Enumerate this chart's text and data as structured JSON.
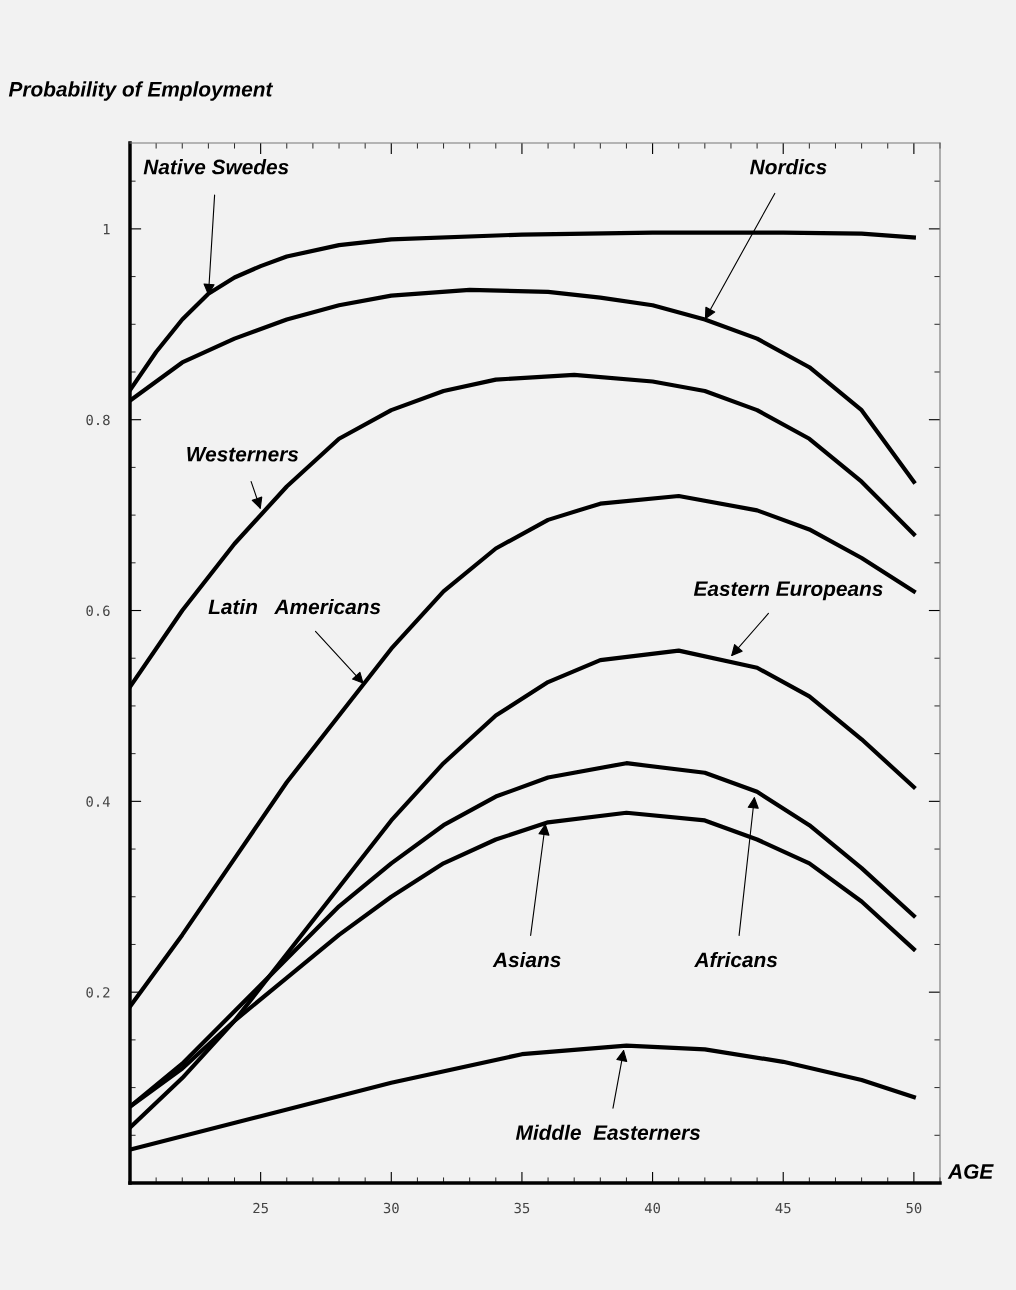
{
  "chart_data": {
    "type": "line",
    "ylabel": "Probability of Employment",
    "xlabel": "AGE",
    "xlim": [
      20,
      51
    ],
    "ylim": [
      0,
      1.09
    ],
    "xticks": [
      25,
      30,
      35,
      40,
      45,
      50
    ],
    "yticks": [
      0.2,
      0.4,
      0.6,
      0.8,
      1
    ],
    "grid": false,
    "legend": false,
    "marker": "none",
    "line_style": "solid",
    "series": [
      {
        "color": "#000000",
        "x": [
          20,
          21,
          22,
          23,
          24,
          25,
          26,
          28,
          30,
          35,
          40,
          45,
          48,
          50
        ],
        "values": [
          0.831,
          0.871,
          0.905,
          0.932,
          0.949,
          0.961,
          0.971,
          0.983,
          0.989,
          0.994,
          0.996,
          0.996,
          0.995,
          0.991
        ]
      },
      {
        "color": "#000000",
        "x": [
          20,
          22,
          24,
          26,
          28,
          30,
          33,
          36,
          38,
          40,
          42,
          44,
          46,
          48,
          50
        ],
        "values": [
          0.82,
          0.86,
          0.885,
          0.905,
          0.92,
          0.93,
          0.936,
          0.934,
          0.928,
          0.92,
          0.905,
          0.885,
          0.855,
          0.81,
          0.735
        ]
      },
      {
        "color": "#000000",
        "x": [
          20,
          22,
          24,
          26,
          28,
          30,
          32,
          34,
          37,
          40,
          42,
          44,
          46,
          48,
          50
        ],
        "values": [
          0.52,
          0.6,
          0.67,
          0.73,
          0.78,
          0.81,
          0.83,
          0.842,
          0.847,
          0.84,
          0.83,
          0.81,
          0.78,
          0.735,
          0.68
        ]
      },
      {
        "color": "#000000",
        "x": [
          20,
          22,
          24,
          26,
          28,
          30,
          32,
          34,
          36,
          38,
          41,
          44,
          46,
          48,
          50
        ],
        "values": [
          0.185,
          0.26,
          0.34,
          0.42,
          0.49,
          0.56,
          0.62,
          0.665,
          0.695,
          0.712,
          0.72,
          0.705,
          0.685,
          0.655,
          0.62
        ]
      },
      {
        "color": "#000000",
        "x": [
          20,
          22,
          24,
          26,
          28,
          30,
          32,
          34,
          36,
          38,
          41,
          44,
          46,
          48,
          50
        ],
        "values": [
          0.058,
          0.11,
          0.17,
          0.24,
          0.31,
          0.38,
          0.44,
          0.49,
          0.525,
          0.548,
          0.558,
          0.54,
          0.51,
          0.465,
          0.415
        ]
      },
      {
        "color": "#000000",
        "x": [
          20,
          22,
          24,
          26,
          28,
          30,
          32,
          34,
          36,
          39,
          42,
          44,
          46,
          48,
          50
        ],
        "values": [
          0.08,
          0.125,
          0.18,
          0.235,
          0.29,
          0.335,
          0.375,
          0.405,
          0.425,
          0.44,
          0.43,
          0.41,
          0.375,
          0.33,
          0.28
        ]
      },
      {
        "color": "#000000",
        "x": [
          20,
          22,
          24,
          26,
          28,
          30,
          32,
          34,
          36,
          39,
          42,
          44,
          46,
          48,
          50
        ],
        "values": [
          0.08,
          0.12,
          0.17,
          0.215,
          0.26,
          0.3,
          0.335,
          0.36,
          0.378,
          0.388,
          0.38,
          0.36,
          0.335,
          0.295,
          0.245
        ]
      },
      {
        "color": "#000000",
        "x": [
          20,
          25,
          30,
          35,
          39,
          42,
          45,
          48,
          50
        ],
        "values": [
          0.035,
          0.07,
          0.105,
          0.135,
          0.144,
          0.14,
          0.127,
          0.108,
          0.09
        ]
      }
    ],
    "annotations": [
      {
        "text": "Native Swedes",
        "x": 23,
        "y": 0.93
      },
      {
        "text": "Nordics",
        "x": 42,
        "y": 0.905
      },
      {
        "text": "Westerners",
        "x": 25,
        "y": 0.706
      },
      {
        "text": "Latin   Americans",
        "x": 28.95,
        "y": 0.523
      },
      {
        "text": "Eastern Europeans",
        "x": 43,
        "y": 0.552
      },
      {
        "text": "Asians",
        "x": 35.9,
        "y": 0.377
      },
      {
        "text": "Africans",
        "x": 43.9,
        "y": 0.405
      },
      {
        "text": "Middle  Easterners",
        "x": 38.9,
        "y": 0.14
      }
    ]
  }
}
